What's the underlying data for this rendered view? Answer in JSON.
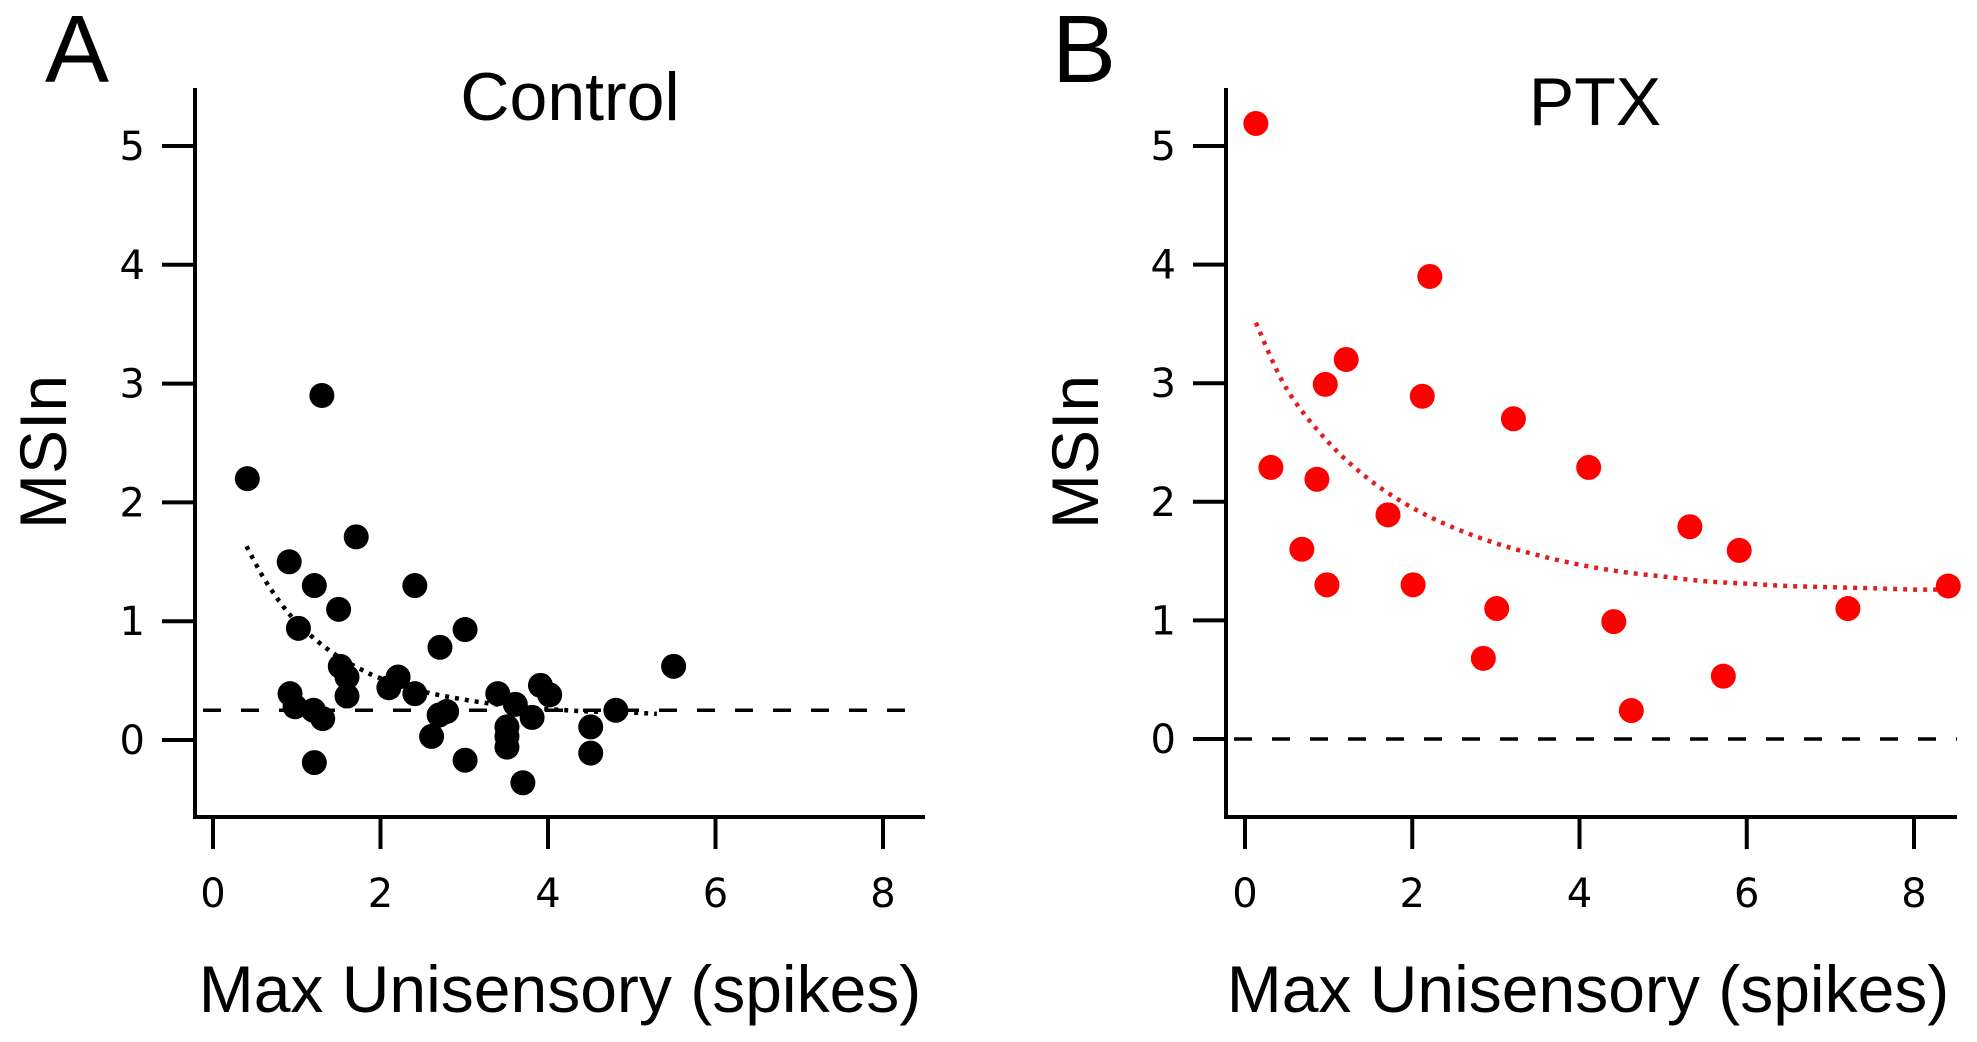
{
  "chart_data": [
    {
      "type": "scatter",
      "panel_letter": "A",
      "title": "Control",
      "xlabel": "Max Unisensory (spikes)",
      "ylabel": "MSIn",
      "xlim": [
        -0.2,
        8.5
      ],
      "ylim": [
        -0.65,
        5.5
      ],
      "xticks": [
        0,
        2,
        4,
        6,
        8
      ],
      "yticks": [
        0,
        1,
        2,
        3,
        4,
        5
      ],
      "grid": false,
      "legend": "none",
      "marker_color": "#000000",
      "reference_line": {
        "y": 0.25,
        "style": "dashed",
        "color": "#000000"
      },
      "fit_curve": {
        "style": "dotted",
        "color": "#000000",
        "x": [
          0.4,
          0.6,
          0.8,
          1.0,
          1.25,
          1.5,
          1.75,
          2.0,
          2.5,
          3.0,
          3.5,
          4.0,
          4.5,
          5.0,
          5.3
        ],
        "y": [
          1.63,
          1.37,
          1.16,
          0.99,
          0.83,
          0.7,
          0.6,
          0.52,
          0.41,
          0.34,
          0.29,
          0.26,
          0.24,
          0.23,
          0.22
        ]
      },
      "points": [
        {
          "x": 0.41,
          "y": 2.2
        },
        {
          "x": 1.3,
          "y": 2.9
        },
        {
          "x": 1.71,
          "y": 1.71
        },
        {
          "x": 0.91,
          "y": 1.5
        },
        {
          "x": 1.21,
          "y": 1.3
        },
        {
          "x": 2.41,
          "y": 1.3
        },
        {
          "x": 1.5,
          "y": 1.1
        },
        {
          "x": 1.02,
          "y": 0.94
        },
        {
          "x": 3.01,
          "y": 0.93
        },
        {
          "x": 2.71,
          "y": 0.78
        },
        {
          "x": 1.52,
          "y": 0.62
        },
        {
          "x": 1.6,
          "y": 0.53
        },
        {
          "x": 1.6,
          "y": 0.37
        },
        {
          "x": 0.92,
          "y": 0.39
        },
        {
          "x": 0.98,
          "y": 0.28
        },
        {
          "x": 1.2,
          "y": 0.25
        },
        {
          "x": 1.31,
          "y": 0.18
        },
        {
          "x": 2.21,
          "y": 0.53
        },
        {
          "x": 2.1,
          "y": 0.44
        },
        {
          "x": 2.41,
          "y": 0.39
        },
        {
          "x": 2.79,
          "y": 0.24
        },
        {
          "x": 2.7,
          "y": 0.21
        },
        {
          "x": 2.61,
          "y": 0.03
        },
        {
          "x": 1.21,
          "y": -0.19
        },
        {
          "x": 3.01,
          "y": -0.17
        },
        {
          "x": 3.4,
          "y": 0.39
        },
        {
          "x": 3.61,
          "y": 0.3
        },
        {
          "x": 3.51,
          "y": 0.11
        },
        {
          "x": 3.51,
          "y": 0.03
        },
        {
          "x": 3.51,
          "y": -0.06
        },
        {
          "x": 3.81,
          "y": 0.19
        },
        {
          "x": 3.91,
          "y": 0.46
        },
        {
          "x": 4.02,
          "y": 0.38
        },
        {
          "x": 3.7,
          "y": -0.36
        },
        {
          "x": 4.51,
          "y": 0.11
        },
        {
          "x": 4.51,
          "y": -0.11
        },
        {
          "x": 4.81,
          "y": 0.25
        },
        {
          "x": 5.5,
          "y": 0.62
        }
      ]
    },
    {
      "type": "scatter",
      "panel_letter": "B",
      "title": "PTX",
      "xlabel": "Max Unisensory (spikes)",
      "ylabel": "MSIn",
      "xlim": [
        -0.2,
        8.5
      ],
      "ylim": [
        -0.65,
        5.5
      ],
      "xticks": [
        0,
        2,
        4,
        6,
        8
      ],
      "yticks": [
        0,
        1,
        2,
        3,
        4,
        5
      ],
      "grid": false,
      "legend": "none",
      "marker_color": "#ff0000",
      "reference_line": {
        "y": 0.0,
        "style": "dashed",
        "color": "#000000"
      },
      "fit_curve": {
        "style": "dotted",
        "color": "#e02020",
        "x": [
          0.13,
          0.5,
          1.0,
          1.5,
          2.0,
          2.5,
          3.0,
          3.5,
          4.0,
          4.5,
          5.0,
          5.5,
          6.0,
          6.5,
          7.0,
          7.56,
          8.0,
          8.3
        ],
        "y": [
          3.51,
          2.95,
          2.5,
          2.18,
          1.95,
          1.78,
          1.65,
          1.55,
          1.47,
          1.41,
          1.37,
          1.33,
          1.31,
          1.29,
          1.28,
          1.27,
          1.26,
          1.26
        ]
      },
      "points": [
        {
          "x": 0.13,
          "y": 5.19
        },
        {
          "x": 2.21,
          "y": 3.9
        },
        {
          "x": 1.21,
          "y": 3.2
        },
        {
          "x": 0.96,
          "y": 2.99
        },
        {
          "x": 2.12,
          "y": 2.89
        },
        {
          "x": 3.21,
          "y": 2.7
        },
        {
          "x": 0.31,
          "y": 2.29
        },
        {
          "x": 0.86,
          "y": 2.19
        },
        {
          "x": 4.11,
          "y": 2.29
        },
        {
          "x": 1.71,
          "y": 1.89
        },
        {
          "x": 5.32,
          "y": 1.79
        },
        {
          "x": 0.68,
          "y": 1.6
        },
        {
          "x": 5.91,
          "y": 1.59
        },
        {
          "x": 0.98,
          "y": 1.3
        },
        {
          "x": 2.01,
          "y": 1.3
        },
        {
          "x": 8.41,
          "y": 1.29
        },
        {
          "x": 3.01,
          "y": 1.1
        },
        {
          "x": 7.21,
          "y": 1.1
        },
        {
          "x": 4.41,
          "y": 0.99
        },
        {
          "x": 2.85,
          "y": 0.68
        },
        {
          "x": 5.72,
          "y": 0.53
        },
        {
          "x": 4.62,
          "y": 0.24
        }
      ]
    }
  ]
}
